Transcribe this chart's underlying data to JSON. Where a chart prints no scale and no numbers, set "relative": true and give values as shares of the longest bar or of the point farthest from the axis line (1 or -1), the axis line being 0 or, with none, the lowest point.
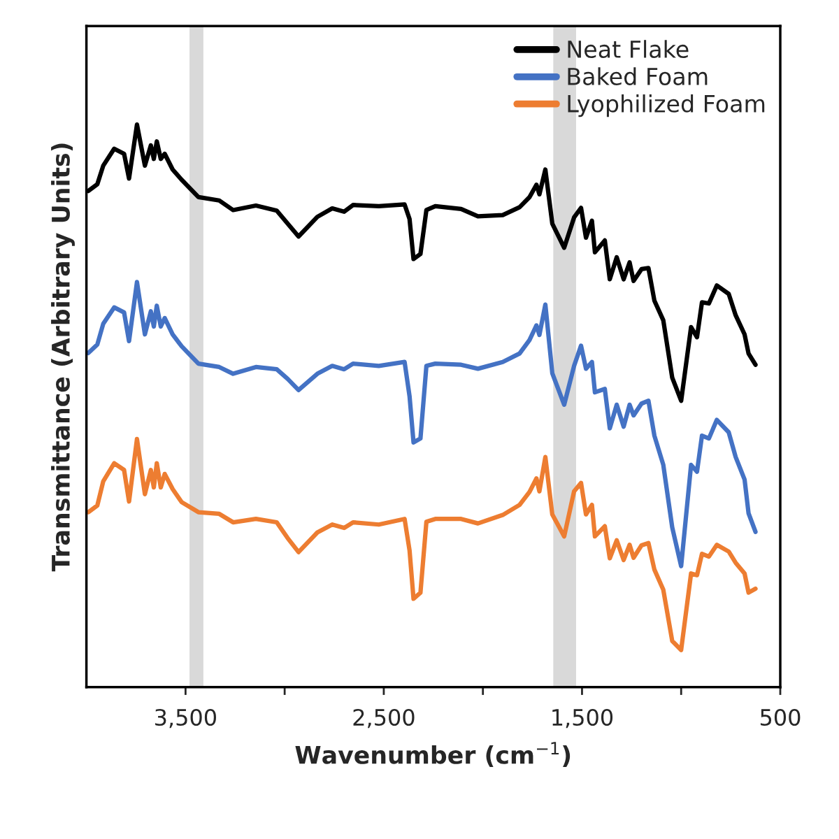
{
  "chart_data": {
    "type": "line",
    "relative": true,
    "xlabel": "Wavenumber (cm$^{−1}$)",
    "ylabel": "Transmittance (Arbitrary Units)",
    "xlim": [
      4000,
      500
    ],
    "xticks": [
      {
        "value": 3500,
        "label": "3,500"
      },
      {
        "value": 3000,
        "label": null
      },
      {
        "value": 2500,
        "label": "2,500"
      },
      {
        "value": 2000,
        "label": null
      },
      {
        "value": 1500,
        "label": "1,500"
      },
      {
        "value": 1000,
        "label": null
      },
      500
    ],
    "x": [
      3990,
      3945,
      3915,
      3860,
      3810,
      3785,
      3745,
      3705,
      3675,
      3660,
      3645,
      3625,
      3605,
      3565,
      3520,
      3435,
      3330,
      3260,
      3145,
      3040,
      2985,
      2930,
      2835,
      2760,
      2700,
      2655,
      2525,
      2395,
      2370,
      2350,
      2315,
      2285,
      2240,
      2110,
      2025,
      1900,
      1815,
      1765,
      1730,
      1715,
      1685,
      1650,
      1590,
      1540,
      1505,
      1480,
      1450,
      1435,
      1385,
      1360,
      1325,
      1290,
      1260,
      1240,
      1200,
      1165,
      1135,
      1090,
      1045,
      1000,
      950,
      920,
      895,
      860,
      820,
      760,
      725,
      680,
      660,
      625
    ],
    "bands": [
      {
        "axis": "x",
        "from": 3480,
        "to": 3410,
        "color": "#d9d9d9"
      },
      {
        "axis": "x",
        "from": 1645,
        "to": 1530,
        "color": "#d9d9d9"
      }
    ],
    "legend": "top right",
    "line_style": "solid",
    "grid": false,
    "series": [
      {
        "name": "Neat Flake",
        "color": "#000000",
        "values": [
          0.882,
          0.894,
          0.927,
          0.957,
          0.948,
          0.904,
          1.0,
          0.927,
          0.963,
          0.939,
          0.97,
          0.939,
          0.948,
          0.92,
          0.902,
          0.871,
          0.865,
          0.848,
          0.856,
          0.847,
          0.824,
          0.801,
          0.836,
          0.851,
          0.845,
          0.857,
          0.855,
          0.858,
          0.832,
          0.761,
          0.77,
          0.848,
          0.855,
          0.85,
          0.837,
          0.839,
          0.853,
          0.871,
          0.893,
          0.876,
          0.92,
          0.824,
          0.781,
          0.835,
          0.852,
          0.799,
          0.829,
          0.773,
          0.794,
          0.725,
          0.764,
          0.725,
          0.755,
          0.722,
          0.743,
          0.745,
          0.687,
          0.652,
          0.55,
          0.509,
          0.64,
          0.622,
          0.684,
          0.682,
          0.714,
          0.699,
          0.661,
          0.627,
          0.593,
          0.573
        ]
      },
      {
        "name": "Baked Foam",
        "color": "#4472c4",
        "values": [
          0.594,
          0.609,
          0.646,
          0.675,
          0.666,
          0.615,
          0.72,
          0.627,
          0.668,
          0.641,
          0.678,
          0.641,
          0.656,
          0.627,
          0.606,
          0.575,
          0.569,
          0.557,
          0.569,
          0.565,
          0.548,
          0.528,
          0.557,
          0.571,
          0.565,
          0.575,
          0.571,
          0.578,
          0.517,
          0.435,
          0.442,
          0.571,
          0.575,
          0.573,
          0.566,
          0.578,
          0.593,
          0.617,
          0.643,
          0.626,
          0.68,
          0.558,
          0.502,
          0.571,
          0.607,
          0.566,
          0.578,
          0.524,
          0.53,
          0.46,
          0.502,
          0.463,
          0.502,
          0.483,
          0.504,
          0.509,
          0.447,
          0.395,
          0.284,
          0.215,
          0.395,
          0.383,
          0.447,
          0.442,
          0.475,
          0.453,
          0.409,
          0.369,
          0.309,
          0.276
        ]
      },
      {
        "name": "Lyophilized Foam",
        "color": "#ed7d31",
        "values": [
          0.311,
          0.323,
          0.366,
          0.398,
          0.386,
          0.33,
          0.441,
          0.343,
          0.386,
          0.355,
          0.398,
          0.355,
          0.379,
          0.352,
          0.329,
          0.311,
          0.308,
          0.293,
          0.299,
          0.293,
          0.265,
          0.24,
          0.275,
          0.289,
          0.283,
          0.293,
          0.289,
          0.299,
          0.243,
          0.157,
          0.168,
          0.294,
          0.299,
          0.299,
          0.291,
          0.306,
          0.324,
          0.347,
          0.371,
          0.348,
          0.409,
          0.307,
          0.268,
          0.348,
          0.363,
          0.307,
          0.324,
          0.268,
          0.286,
          0.229,
          0.261,
          0.226,
          0.253,
          0.23,
          0.252,
          0.256,
          0.209,
          0.173,
          0.082,
          0.066,
          0.202,
          0.199,
          0.237,
          0.232,
          0.253,
          0.241,
          0.221,
          0.202,
          0.168,
          0.175
        ]
      }
    ]
  }
}
